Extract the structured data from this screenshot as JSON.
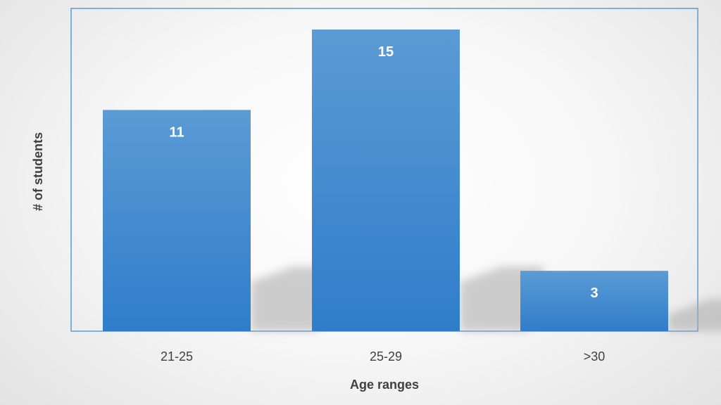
{
  "chart_data": {
    "type": "bar",
    "categories": [
      "21-25",
      "25-29",
      ">30"
    ],
    "values": [
      11,
      15,
      3
    ],
    "data_labels": [
      "11",
      "15",
      "3"
    ],
    "title": "",
    "xlabel": "Age ranges",
    "ylabel": "# of students",
    "ylim": [
      0,
      16
    ],
    "grid": false,
    "legend": "none",
    "colors": {
      "bar_top": "#5b9bd5",
      "bar_bottom": "#2f7dca",
      "plot_border": "#5b9bd5",
      "bar_label": "#ffffff",
      "axis_text": "#404040"
    }
  }
}
